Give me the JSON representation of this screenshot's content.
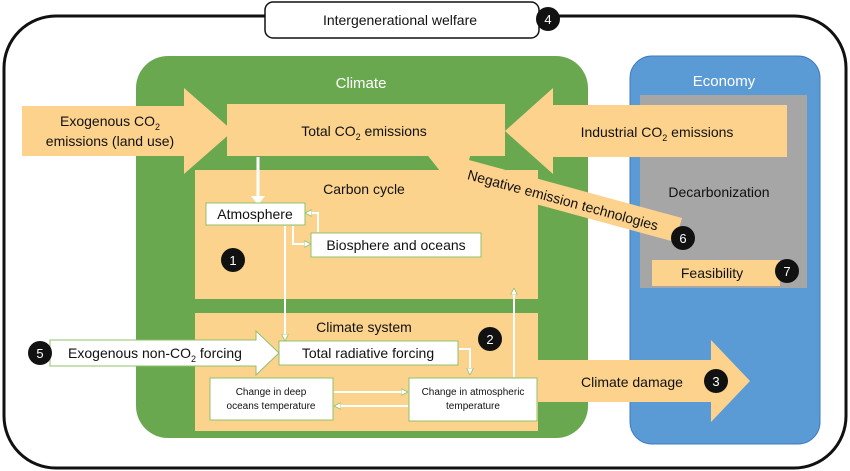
{
  "welfare": {
    "label": "Intergenerational welfare",
    "badge": "4"
  },
  "climate": {
    "title": "Climate"
  },
  "economy": {
    "title": "Economy"
  },
  "total_emissions": {
    "main": "Total CO",
    "sub": "2",
    "tail": " emissions"
  },
  "exogenous_land": {
    "line1_main": "Exogenous CO",
    "line1_sub": "2",
    "line2": "emissions (land use)"
  },
  "industrial": {
    "main": "Industrial CO",
    "sub": "2",
    "tail": " emissions"
  },
  "carbon_cycle": {
    "title": "Carbon cycle",
    "atmosphere": "Atmosphere",
    "biosphere": "Biosphere and oceans",
    "badge": "1"
  },
  "negative_emission": {
    "label": "Negative emission technologies",
    "badge": "6"
  },
  "decarbonization": {
    "label": "Decarbonization"
  },
  "feasibility": {
    "label": "Feasibility",
    "badge": "7"
  },
  "climate_system": {
    "title": "Climate system",
    "badge": "2",
    "total_forcing": "Total radiative forcing",
    "deep_ocean_line1": "Change in deep",
    "deep_ocean_line2": "oceans temperature",
    "atmospheric_line1": "Change in atmospheric",
    "atmospheric_line2": "temperature"
  },
  "non_co2": {
    "main": "Exogenous non-CO",
    "sub": "2",
    "tail": " forcing",
    "badge": "5"
  },
  "damage": {
    "label": "Climate damage",
    "badge": "3"
  },
  "colors": {
    "climate_green": "#6aa84f",
    "economy_blue": "#5b9bd5",
    "decarb_grey": "#a6a6a6",
    "box_orange": "#fbd38d",
    "arrow_orange": "#fcd28c",
    "badge_black": "#111111"
  }
}
